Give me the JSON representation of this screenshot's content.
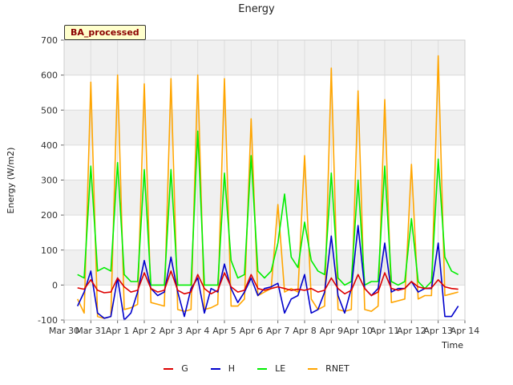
{
  "chart_data": {
    "type": "line",
    "title": "Energy",
    "xlabel": "Time",
    "ylabel": "Energy (W/m2)",
    "ylim": [
      -100,
      700
    ],
    "yticks": [
      -100,
      0,
      100,
      200,
      300,
      400,
      500,
      600,
      700
    ],
    "xlim": [
      "2000-03-30",
      "2000-04-14"
    ],
    "xtick_labels": [
      "Mar 30",
      "Mar 31",
      "Apr 1",
      "Apr 2",
      "Apr 3",
      "Apr 4",
      "Apr 5",
      "Apr 6",
      "Apr 7",
      "Apr 8",
      "Apr 9",
      "Apr 10",
      "Apr 11",
      "Apr 12",
      "Apr 13",
      "Apr 14"
    ],
    "grid": true,
    "background_bands": true,
    "annotation": "BA_processed",
    "legend_position": "bottom-center",
    "series": [
      {
        "name": "G",
        "color": "#dd0000",
        "x": [
          "Mar 30 12:00",
          "Mar 30 18:00",
          "Mar 31 00:00",
          "Mar 31 06:00",
          "Mar 31 12:00",
          "Mar 31 18:00",
          "Apr 1 00:00",
          "Apr 1 06:00",
          "Apr 1 12:00",
          "Apr 1 18:00",
          "Apr 2 00:00",
          "Apr 2 06:00",
          "Apr 2 12:00",
          "Apr 2 18:00",
          "Apr 3 00:00",
          "Apr 3 06:00",
          "Apr 3 12:00",
          "Apr 3 18:00",
          "Apr 4 00:00",
          "Apr 4 06:00",
          "Apr 4 12:00",
          "Apr 4 18:00",
          "Apr 5 00:00",
          "Apr 5 06:00",
          "Apr 5 12:00",
          "Apr 5 18:00",
          "Apr 6 00:00",
          "Apr 6 06:00",
          "Apr 6 12:00",
          "Apr 6 18:00",
          "Apr 7 00:00",
          "Apr 7 06:00",
          "Apr 7 12:00",
          "Apr 7 18:00",
          "Apr 8 00:00",
          "Apr 8 06:00",
          "Apr 8 12:00",
          "Apr 8 18:00",
          "Apr 9 00:00",
          "Apr 9 06:00",
          "Apr 9 12:00",
          "Apr 9 18:00",
          "Apr 10 00:00",
          "Apr 10 06:00",
          "Apr 10 12:00",
          "Apr 10 18:00",
          "Apr 11 00:00",
          "Apr 11 06:00",
          "Apr 11 12:00",
          "Apr 11 18:00",
          "Apr 12 00:00",
          "Apr 12 06:00",
          "Apr 12 12:00",
          "Apr 12 18:00",
          "Apr 13 00:00",
          "Apr 13 06:00",
          "Apr 13 12:00",
          "Apr 13 18:00"
        ],
        "values": [
          -8,
          -12,
          15,
          -15,
          -22,
          -20,
          20,
          -5,
          -20,
          -15,
          35,
          -10,
          -20,
          -15,
          40,
          -15,
          -25,
          -20,
          30,
          -10,
          -25,
          -15,
          35,
          -5,
          -20,
          -15,
          30,
          -10,
          -15,
          -10,
          -5,
          -10,
          -15,
          -12,
          -15,
          -10,
          -20,
          -15,
          20,
          -10,
          -25,
          -15,
          30,
          -10,
          -30,
          -20,
          35,
          -10,
          -15,
          -10,
          10,
          -5,
          -10,
          -8,
          15,
          -5,
          -10,
          -12
        ]
      },
      {
        "name": "H",
        "color": "#0000cc",
        "x": [
          "Mar 30 12:00",
          "Mar 30 18:00",
          "Mar 31 00:00",
          "Mar 31 06:00",
          "Mar 31 12:00",
          "Mar 31 18:00",
          "Apr 1 00:00",
          "Apr 1 06:00",
          "Apr 1 12:00",
          "Apr 1 18:00",
          "Apr 2 00:00",
          "Apr 2 06:00",
          "Apr 2 12:00",
          "Apr 2 18:00",
          "Apr 3 00:00",
          "Apr 3 06:00",
          "Apr 3 12:00",
          "Apr 3 18:00",
          "Apr 4 00:00",
          "Apr 4 06:00",
          "Apr 4 12:00",
          "Apr 4 18:00",
          "Apr 5 00:00",
          "Apr 5 06:00",
          "Apr 5 12:00",
          "Apr 5 18:00",
          "Apr 6 00:00",
          "Apr 6 06:00",
          "Apr 6 12:00",
          "Apr 6 18:00",
          "Apr 7 00:00",
          "Apr 7 06:00",
          "Apr 7 12:00",
          "Apr 7 18:00",
          "Apr 8 00:00",
          "Apr 8 06:00",
          "Apr 8 12:00",
          "Apr 8 18:00",
          "Apr 9 00:00",
          "Apr 9 06:00",
          "Apr 9 12:00",
          "Apr 9 18:00",
          "Apr 10 00:00",
          "Apr 10 06:00",
          "Apr 10 12:00",
          "Apr 10 18:00",
          "Apr 11 00:00",
          "Apr 11 06:00",
          "Apr 11 12:00",
          "Apr 11 18:00",
          "Apr 12 00:00",
          "Apr 12 06:00",
          "Apr 12 12:00",
          "Apr 12 18:00",
          "Apr 13 00:00",
          "Apr 13 06:00",
          "Apr 13 12:00",
          "Apr 13 18:00"
        ],
        "values": [
          -60,
          -20,
          40,
          -80,
          -95,
          -90,
          20,
          -100,
          -80,
          -20,
          70,
          -10,
          -30,
          -20,
          80,
          -20,
          -90,
          -10,
          20,
          -80,
          -10,
          -20,
          60,
          -10,
          -50,
          -20,
          20,
          -30,
          -10,
          -5,
          5,
          -80,
          -40,
          -30,
          30,
          -80,
          -70,
          -20,
          140,
          -30,
          -80,
          -10,
          170,
          -10,
          -30,
          -10,
          120,
          -20,
          -10,
          -10,
          10,
          -20,
          -10,
          -10,
          120,
          -90,
          -90,
          -60
        ]
      },
      {
        "name": "LE",
        "color": "#00ee00",
        "x": [
          "Mar 30 12:00",
          "Mar 30 18:00",
          "Mar 31 00:00",
          "Mar 31 06:00",
          "Mar 31 12:00",
          "Mar 31 18:00",
          "Apr 1 00:00",
          "Apr 1 06:00",
          "Apr 1 12:00",
          "Apr 1 18:00",
          "Apr 2 00:00",
          "Apr 2 06:00",
          "Apr 2 12:00",
          "Apr 2 18:00",
          "Apr 3 00:00",
          "Apr 3 06:00",
          "Apr 3 12:00",
          "Apr 3 18:00",
          "Apr 4 00:00",
          "Apr 4 06:00",
          "Apr 4 12:00",
          "Apr 4 18:00",
          "Apr 5 00:00",
          "Apr 5 06:00",
          "Apr 5 12:00",
          "Apr 5 18:00",
          "Apr 6 00:00",
          "Apr 6 06:00",
          "Apr 6 12:00",
          "Apr 6 18:00",
          "Apr 7 00:00",
          "Apr 7 06:00",
          "Apr 7 12:00",
          "Apr 7 18:00",
          "Apr 8 00:00",
          "Apr 8 06:00",
          "Apr 8 12:00",
          "Apr 8 18:00",
          "Apr 9 00:00",
          "Apr 9 06:00",
          "Apr 9 12:00",
          "Apr 9 18:00",
          "Apr 10 00:00",
          "Apr 10 06:00",
          "Apr 10 12:00",
          "Apr 10 18:00",
          "Apr 11 00:00",
          "Apr 11 06:00",
          "Apr 11 12:00",
          "Apr 11 18:00",
          "Apr 12 00:00",
          "Apr 12 06:00",
          "Apr 12 12:00",
          "Apr 12 18:00",
          "Apr 13 00:00",
          "Apr 13 06:00",
          "Apr 13 12:00",
          "Apr 13 18:00"
        ],
        "values": [
          30,
          20,
          340,
          40,
          50,
          40,
          350,
          30,
          10,
          10,
          330,
          0,
          0,
          0,
          330,
          0,
          0,
          0,
          440,
          0,
          0,
          0,
          320,
          70,
          20,
          30,
          370,
          40,
          20,
          40,
          120,
          260,
          80,
          50,
          180,
          70,
          40,
          30,
          320,
          20,
          0,
          10,
          300,
          0,
          10,
          10,
          340,
          10,
          0,
          10,
          190,
          10,
          -10,
          10,
          360,
          80,
          40,
          30
        ]
      },
      {
        "name": "RNET",
        "color": "#ffa500",
        "x": [
          "Mar 30 12:00",
          "Mar 30 18:00",
          "Mar 31 00:00",
          "Mar 31 06:00",
          "Mar 31 12:00",
          "Mar 31 18:00",
          "Apr 1 00:00",
          "Apr 1 06:00",
          "Apr 1 12:00",
          "Apr 1 18:00",
          "Apr 2 00:00",
          "Apr 2 06:00",
          "Apr 2 12:00",
          "Apr 2 18:00",
          "Apr 3 00:00",
          "Apr 3 06:00",
          "Apr 3 12:00",
          "Apr 3 18:00",
          "Apr 4 00:00",
          "Apr 4 06:00",
          "Apr 4 12:00",
          "Apr 4 18:00",
          "Apr 5 00:00",
          "Apr 5 06:00",
          "Apr 5 12:00",
          "Apr 5 18:00",
          "Apr 6 00:00",
          "Apr 6 06:00",
          "Apr 6 12:00",
          "Apr 6 18:00",
          "Apr 7 00:00",
          "Apr 7 06:00",
          "Apr 7 12:00",
          "Apr 7 18:00",
          "Apr 8 00:00",
          "Apr 8 06:00",
          "Apr 8 12:00",
          "Apr 8 18:00",
          "Apr 9 00:00",
          "Apr 9 06:00",
          "Apr 9 12:00",
          "Apr 9 18:00",
          "Apr 10 00:00",
          "Apr 10 06:00",
          "Apr 10 12:00",
          "Apr 10 18:00",
          "Apr 11 00:00",
          "Apr 11 06:00",
          "Apr 11 12:00",
          "Apr 11 18:00",
          "Apr 12 00:00",
          "Apr 12 06:00",
          "Apr 12 12:00",
          "Apr 12 18:00",
          "Apr 13 00:00",
          "Apr 13 06:00",
          "Apr 13 12:00",
          "Apr 13 18:00"
        ],
        "values": [
          -40,
          -80,
          580,
          -90,
          -95,
          -90,
          600,
          -70,
          -65,
          -55,
          575,
          -50,
          -55,
          -60,
          590,
          -70,
          -75,
          -70,
          600,
          -70,
          -65,
          -55,
          590,
          -60,
          -60,
          -40,
          475,
          -30,
          -20,
          -10,
          230,
          -20,
          -10,
          -20,
          370,
          -40,
          -70,
          -60,
          620,
          -70,
          -75,
          -70,
          555,
          -70,
          -75,
          -60,
          530,
          -50,
          -45,
          -40,
          345,
          -40,
          -30,
          -30,
          655,
          -30,
          -25,
          -20
        ]
      }
    ]
  },
  "legend": {
    "g_label": "G",
    "h_label": "H",
    "le_label": "LE",
    "rnet_label": "RNET"
  },
  "badge": {
    "label": "BA_processed"
  }
}
